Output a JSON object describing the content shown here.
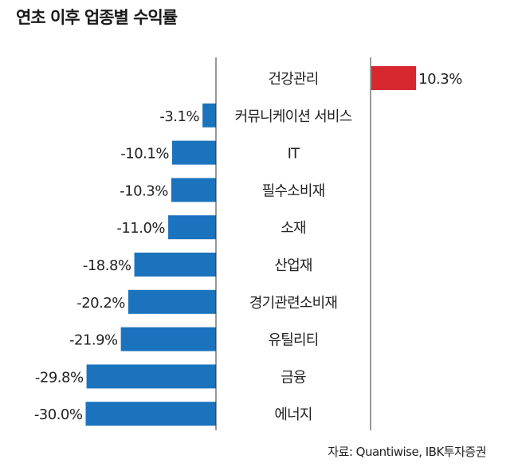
{
  "title": "연초 이후 업종별 수익률",
  "source": "자료: Quantiwise, IBK투자증권",
  "colors": {
    "positive": "#d7282f",
    "negative": "#1b73be",
    "axis": "#333333",
    "text": "#222222"
  },
  "chart_data": {
    "type": "bar",
    "orientation": "horizontal",
    "title": "연초 이후 업종별 수익률",
    "unit": "%",
    "categories": [
      "건강관리",
      "커뮤니케이션 서비스",
      "IT",
      "필수소비재",
      "소재",
      "산업재",
      "경기관련소비재",
      "유틸리티",
      "금융",
      "에너지"
    ],
    "values": [
      10.3,
      -3.1,
      -10.1,
      -10.3,
      -11.0,
      -18.8,
      -20.2,
      -21.9,
      -29.8,
      -30.0
    ],
    "value_labels": [
      "10.3%",
      "-3.1%",
      "-10.1%",
      "-10.3%",
      "-11.0%",
      "-18.8%",
      "-20.2%",
      "-21.9%",
      "-29.8%",
      "-30.0%"
    ],
    "grid": false,
    "legend": "none"
  }
}
